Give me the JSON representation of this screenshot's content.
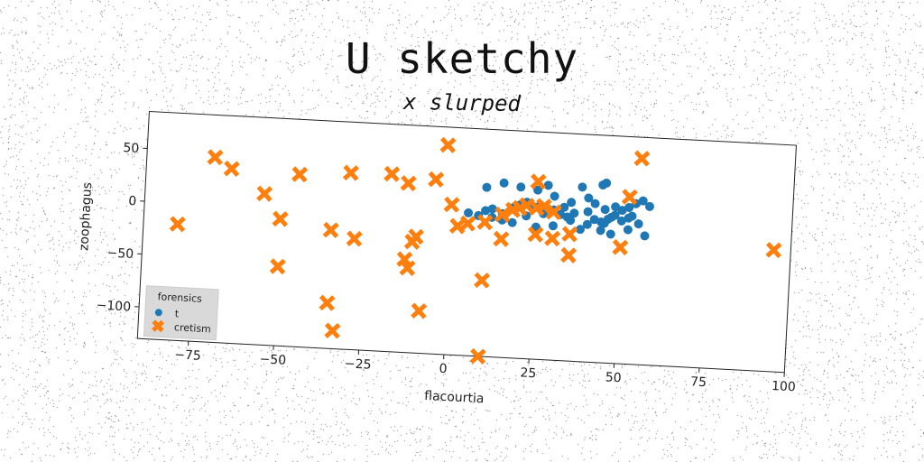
{
  "title": "U sketchy",
  "subtitle": "x slurped",
  "colors": {
    "blue": "#1f77b4",
    "orange": "#ff7f0e",
    "legend_bg": "#d9d9d9"
  },
  "chart_data": {
    "type": "scatter",
    "xlabel": "flacourtia",
    "ylabel": "zoophagus",
    "xlim": [
      -90,
      100
    ],
    "ylim": [
      -130,
      85
    ],
    "x_ticks": [
      -75,
      -50,
      -25,
      0,
      25,
      50,
      75,
      100
    ],
    "y_ticks": [
      50,
      0,
      -50,
      -100
    ],
    "x_tick_labels": [
      "−75",
      "−50",
      "−25",
      "0",
      "25",
      "50",
      "75",
      "100"
    ],
    "y_tick_labels": [
      "50",
      "0",
      "−50",
      "−100"
    ],
    "grid": false,
    "legend": {
      "title": "forensics",
      "placement": "lower-left"
    },
    "series": [
      {
        "name": "t",
        "marker": "circle",
        "color": "#1f77b4",
        "points": [
          [
            5,
            5
          ],
          [
            8,
            3
          ],
          [
            10,
            8
          ],
          [
            12,
            10
          ],
          [
            15,
            6
          ],
          [
            18,
            12
          ],
          [
            20,
            15
          ],
          [
            22,
            18
          ],
          [
            24,
            14
          ],
          [
            26,
            16
          ],
          [
            28,
            10
          ],
          [
            30,
            12
          ],
          [
            32,
            8
          ],
          [
            34,
            6
          ],
          [
            36,
            10
          ],
          [
            40,
            12
          ],
          [
            42,
            5
          ],
          [
            44,
            3
          ],
          [
            45,
            2
          ],
          [
            46,
            6
          ],
          [
            47,
            8
          ],
          [
            48,
            10
          ],
          [
            50,
            5
          ],
          [
            52,
            8
          ],
          [
            53,
            10
          ],
          [
            55,
            3
          ],
          [
            10,
            30
          ],
          [
            15,
            35
          ],
          [
            20,
            32
          ],
          [
            25,
            30
          ],
          [
            28,
            35
          ],
          [
            35,
            20
          ],
          [
            40,
            25
          ],
          [
            42,
            20
          ],
          [
            45,
            15
          ],
          [
            48,
            18
          ],
          [
            50,
            15
          ],
          [
            52,
            18
          ],
          [
            54,
            22
          ],
          [
            56,
            25
          ],
          [
            58,
            20
          ],
          [
            44,
            -5
          ],
          [
            47,
            -8
          ],
          [
            52,
            -3
          ],
          [
            57,
            -8
          ],
          [
            38,
            -5
          ],
          [
            30,
            -3
          ],
          [
            25,
            -5
          ],
          [
            18,
            -2
          ],
          [
            15,
            0
          ],
          [
            12,
            2
          ],
          [
            35,
            3
          ],
          [
            40,
            0
          ],
          [
            38,
            35
          ],
          [
            44,
            38
          ],
          [
            30,
            25
          ],
          [
            22,
            5
          ],
          [
            27,
            8
          ],
          [
            33,
            15
          ],
          [
            45,
            40
          ]
        ]
      },
      {
        "name": "cretism",
        "marker": "x",
        "color": "#ff7f0e",
        "points": [
          [
            -80,
            -20
          ],
          [
            -70,
            45
          ],
          [
            -65,
            35
          ],
          [
            -55,
            13
          ],
          [
            -50,
            -10
          ],
          [
            -45,
            33
          ],
          [
            -35,
            -18
          ],
          [
            -30,
            37
          ],
          [
            -28,
            -25
          ],
          [
            -50,
            -55
          ],
          [
            -35,
            -87
          ],
          [
            -33,
            -113
          ],
          [
            -18,
            38
          ],
          [
            -13,
            30
          ],
          [
            -10,
            -20
          ],
          [
            -11,
            -25
          ],
          [
            -13,
            -42
          ],
          [
            -12,
            -50
          ],
          [
            -8,
            -90
          ],
          [
            -5,
            35
          ],
          [
            -2,
            68
          ],
          [
            0,
            12
          ],
          [
            2,
            -8
          ],
          [
            5,
            -5
          ],
          [
            10,
            -3
          ],
          [
            15,
            5
          ],
          [
            18,
            10
          ],
          [
            20,
            12
          ],
          [
            22,
            15
          ],
          [
            25,
            13
          ],
          [
            27,
            15
          ],
          [
            30,
            10
          ],
          [
            25,
            -12
          ],
          [
            30,
            -15
          ],
          [
            35,
            -10
          ],
          [
            35,
            -30
          ],
          [
            50,
            -20
          ],
          [
            52,
            28
          ],
          [
            55,
            65
          ],
          [
            25,
            38
          ],
          [
            15,
            -18
          ],
          [
            10,
            -58
          ],
          [
            10,
            -130
          ],
          [
            95,
            -15
          ]
        ]
      }
    ]
  }
}
